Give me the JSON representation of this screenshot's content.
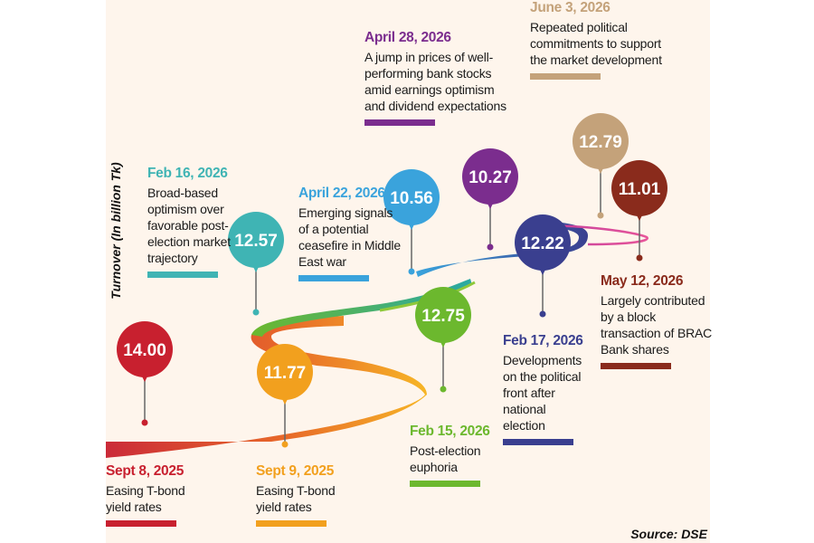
{
  "source": "Source: DSE",
  "chart_data": {
    "type": "line",
    "ylabel": "Turnover (In billion Tk)",
    "points": [
      {
        "value": "14.00",
        "date": "Sept 8, 2025",
        "desc": "Easing T-bond yield rates",
        "color": "#c8202f"
      },
      {
        "value": "11.77",
        "date": "Sept 9, 2025",
        "desc": "Easing T-bond yield rates",
        "color": "#f2a01e"
      },
      {
        "value": "12.75",
        "date": "Feb 15, 2026",
        "desc": "Post-election euphoria",
        "color": "#6cb82e"
      },
      {
        "value": "12.57",
        "date": "Feb 16, 2026",
        "desc": "Broad-based optimism over favorable post-election market trajectory",
        "color": "#3fb4b4"
      },
      {
        "value": "12.22",
        "date": "Feb 17, 2026",
        "desc": "Developments on the political front after national election",
        "color": "#3a3f8f"
      },
      {
        "value": "10.56",
        "date": "April 22, 2026",
        "desc": "Emerging signals of a potential ceasefire in Middle East war",
        "color": "#3aa3dc"
      },
      {
        "value": "10.27",
        "date": "April 28, 2026",
        "desc": "A jump in prices of well-performing bank stocks amid earnings optimism and dividend expectations",
        "color": "#7b2d8e"
      },
      {
        "value": "11.01",
        "date": "May 12, 2026",
        "desc": "Largely contributed by a block transaction of BRAC Bank shares",
        "color": "#8a2b1c"
      },
      {
        "value": "12.79",
        "date": "June 3, 2026",
        "desc": "Repeated political commitments to support the market development",
        "color": "#c4a27a"
      }
    ]
  }
}
